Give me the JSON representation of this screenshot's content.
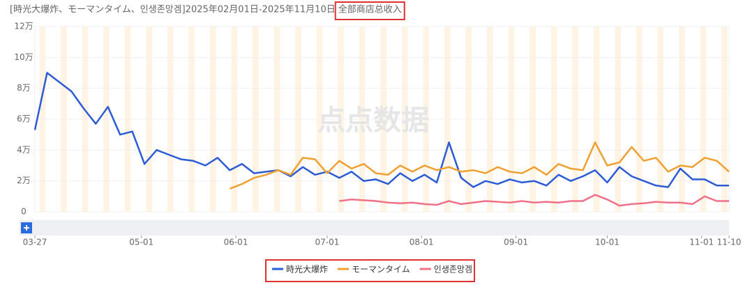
{
  "header": {
    "title": "[時光大爆炸、モーマンタイム、인생존망겜]2025年02月01日-2025年11月10日",
    "metric": "全部商店总收入"
  },
  "watermark": "点点数据",
  "chart_data": {
    "type": "line",
    "x": [
      "03-27",
      "03-31",
      "04-04",
      "04-08",
      "04-12",
      "04-16",
      "04-20",
      "04-24",
      "04-28",
      "05-02",
      "05-06",
      "05-10",
      "05-14",
      "05-18",
      "05-22",
      "05-26",
      "05-30",
      "06-03",
      "06-07",
      "06-11",
      "06-15",
      "06-19",
      "06-23",
      "06-27",
      "07-01",
      "07-05",
      "07-09",
      "07-13",
      "07-17",
      "07-21",
      "07-25",
      "07-29",
      "08-02",
      "08-06",
      "08-10",
      "08-14",
      "08-18",
      "08-22",
      "08-26",
      "08-30",
      "09-03",
      "09-07",
      "09-11",
      "09-15",
      "09-19",
      "09-23",
      "09-27",
      "10-01",
      "10-05",
      "10-09",
      "10-13",
      "10-17",
      "10-21",
      "10-25",
      "10-29",
      "11-02",
      "11-06",
      "11-10"
    ],
    "xticks": [
      "03-27",
      "05-01",
      "06-01",
      "07-01",
      "08-01",
      "09-01",
      "10-01",
      "11-01",
      "11-10"
    ],
    "ylim": [
      0,
      120000
    ],
    "yticks": [
      {
        "value": 0,
        "label": "0"
      },
      {
        "value": 20000,
        "label": "2万"
      },
      {
        "value": 40000,
        "label": "4万"
      },
      {
        "value": 60000,
        "label": "6万"
      },
      {
        "value": 80000,
        "label": "8万"
      },
      {
        "value": 100000,
        "label": "10万"
      },
      {
        "value": 120000,
        "label": "12万"
      }
    ],
    "grid": true,
    "legend": "bottom",
    "series": [
      {
        "name": "時光大爆炸",
        "color": "#2b5bd7",
        "values": [
          53000,
          90000,
          84000,
          78000,
          67000,
          57000,
          68000,
          50000,
          52000,
          31000,
          40000,
          37000,
          34000,
          33000,
          30000,
          35000,
          27000,
          31000,
          25000,
          26000,
          27000,
          23000,
          29000,
          24000,
          26000,
          22000,
          26000,
          20000,
          21000,
          18000,
          25000,
          20000,
          24000,
          19000,
          45000,
          22000,
          16000,
          20000,
          18000,
          21000,
          19000,
          20000,
          17000,
          24000,
          20000,
          23000,
          27000,
          19000,
          29000,
          23000,
          20000,
          17000,
          16000,
          28000,
          21000,
          21000,
          17000,
          17000
        ]
      },
      {
        "name": "モーマンタイム",
        "color": "#f0a030",
        "values": [
          null,
          null,
          null,
          null,
          null,
          null,
          null,
          null,
          null,
          null,
          null,
          null,
          null,
          null,
          null,
          null,
          15000,
          18000,
          22000,
          24000,
          27000,
          24000,
          35000,
          34000,
          25000,
          33000,
          28000,
          31000,
          25000,
          24000,
          30000,
          26000,
          30000,
          27000,
          29000,
          26000,
          27000,
          25000,
          29000,
          26000,
          25000,
          29000,
          24000,
          31000,
          28000,
          27000,
          45000,
          30000,
          32000,
          42000,
          33000,
          35000,
          26000,
          30000,
          29000,
          35000,
          33000,
          26000
        ]
      },
      {
        "name": "인생존망겜",
        "color": "#f07088",
        "values": [
          null,
          null,
          null,
          null,
          null,
          null,
          null,
          null,
          null,
          null,
          null,
          null,
          null,
          null,
          null,
          null,
          null,
          null,
          null,
          null,
          null,
          null,
          null,
          null,
          null,
          7000,
          8000,
          7500,
          7000,
          6000,
          5500,
          6000,
          5000,
          4500,
          7000,
          5000,
          6000,
          7000,
          6500,
          6000,
          7000,
          6000,
          6500,
          6000,
          7000,
          7000,
          11000,
          8000,
          4000,
          5000,
          5500,
          6500,
          6000,
          6000,
          5000,
          10000,
          7000,
          7000
        ]
      }
    ]
  }
}
